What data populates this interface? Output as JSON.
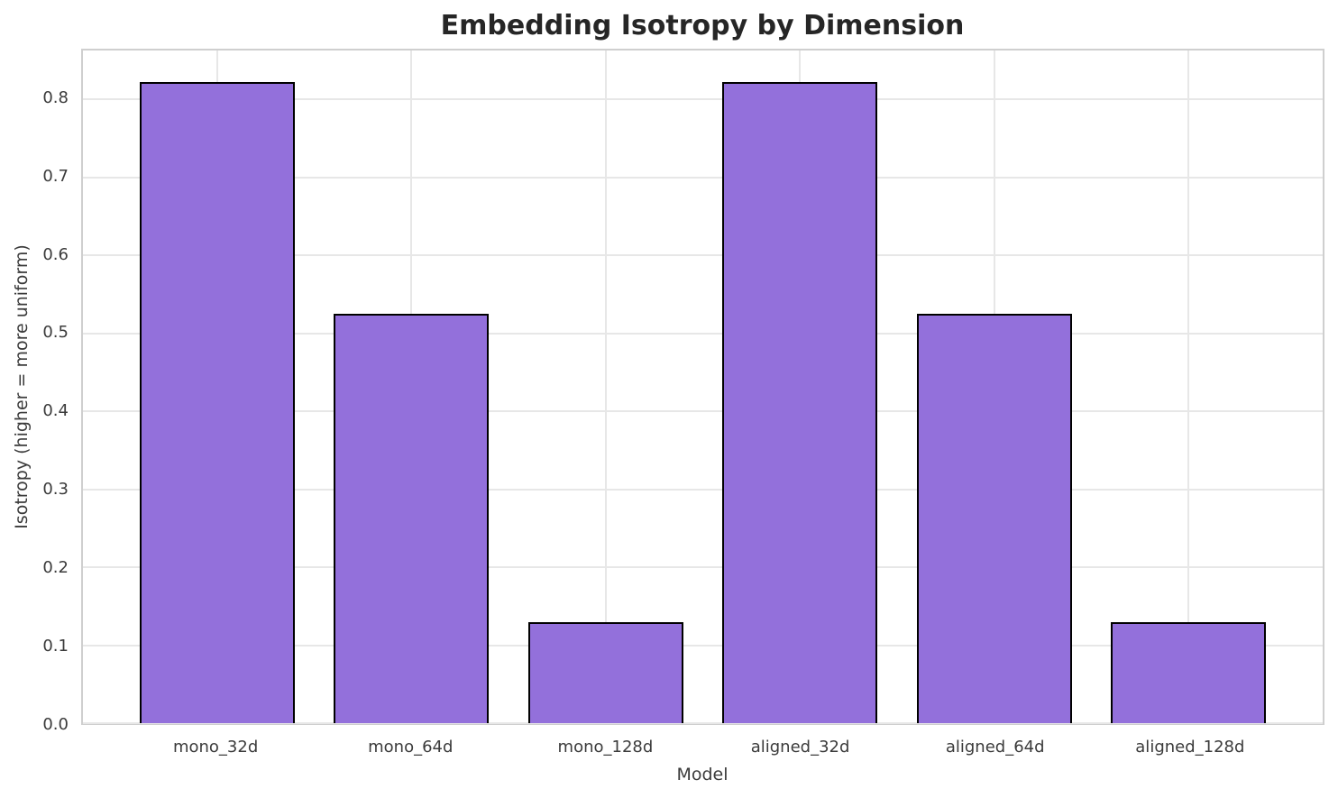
{
  "chart_data": {
    "type": "bar",
    "title": "Embedding Isotropy by Dimension",
    "xlabel": "Model",
    "ylabel": "Isotropy (higher = more uniform)",
    "categories": [
      "mono_32d",
      "mono_64d",
      "mono_128d",
      "aligned_32d",
      "aligned_64d",
      "aligned_128d"
    ],
    "values": [
      0.822,
      0.525,
      0.13,
      0.822,
      0.525,
      0.13
    ],
    "yticks": [
      "0.0",
      "0.1",
      "0.2",
      "0.3",
      "0.4",
      "0.5",
      "0.6",
      "0.7",
      "0.8"
    ],
    "ylim": [
      0,
      0.863
    ],
    "xlim": [
      -0.69,
      5.69
    ],
    "bar_width_units": 0.8,
    "grid": "on",
    "legend_position": "none",
    "colors": {
      "bar_fill": "#9370DB",
      "bar_edge": "#000000",
      "gridline": "#e7e7e7",
      "spine": "#cfcfcf",
      "title_text": "#262626",
      "tick_text": "#3b3b3b"
    }
  }
}
